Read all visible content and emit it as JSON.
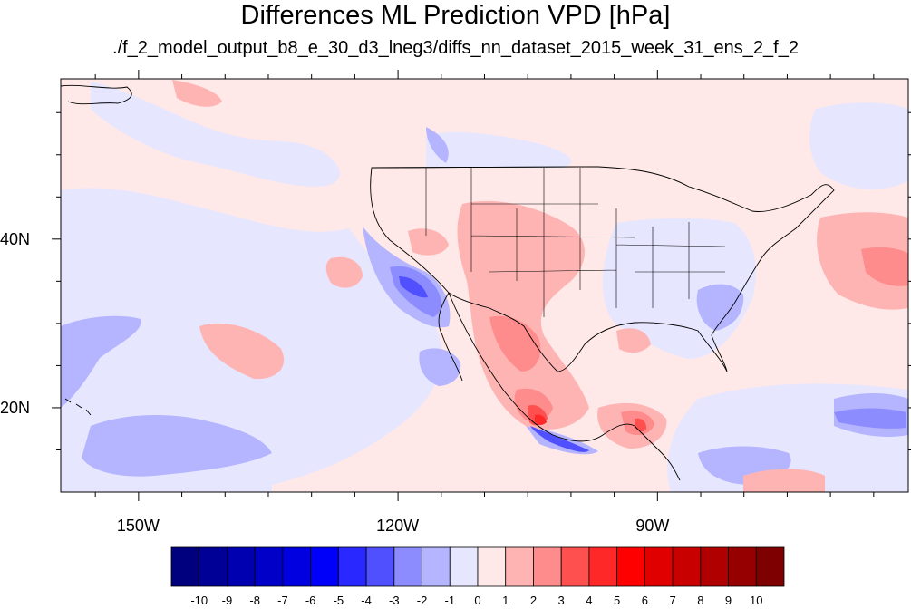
{
  "title": "Differences ML Prediction VPD [hPa]",
  "subtitle": "./f_2_model_output_b8_e_30_d3_lneg3/diffs_nn_dataset_2015_week_31_ens_2_f_2",
  "map": {
    "extent": {
      "lon": [
        -159,
        -61
      ],
      "lat": [
        10,
        59
      ]
    },
    "background_color": "#ffe8e8",
    "y_ticks": [
      {
        "lat": 40,
        "label": "40N"
      },
      {
        "lat": 20,
        "label": "20N"
      }
    ],
    "x_ticks": [
      {
        "lon": -150,
        "label": "150W"
      },
      {
        "lon": -120,
        "label": "120W"
      },
      {
        "lon": -90,
        "label": "90W"
      }
    ]
  },
  "colorbar": {
    "labels": [
      "-10",
      "-9",
      "-8",
      "-7",
      "-6",
      "-5",
      "-4",
      "-3",
      "-2",
      "-1",
      "0",
      "1",
      "2",
      "3",
      "4",
      "5",
      "6",
      "7",
      "8",
      "9",
      "10"
    ],
    "colors": [
      "#00007f",
      "#000096",
      "#0000b0",
      "#0000c8",
      "#0000e0",
      "#0000fa",
      "#2828ff",
      "#5050ff",
      "#8c8cff",
      "#b4b4ff",
      "#e6e6ff",
      "#ffe8e8",
      "#ffb4b4",
      "#ff8c8c",
      "#ff5050",
      "#ff2828",
      "#ff0000",
      "#e00000",
      "#c80000",
      "#b00000",
      "#960000",
      "#7f0000"
    ]
  }
}
